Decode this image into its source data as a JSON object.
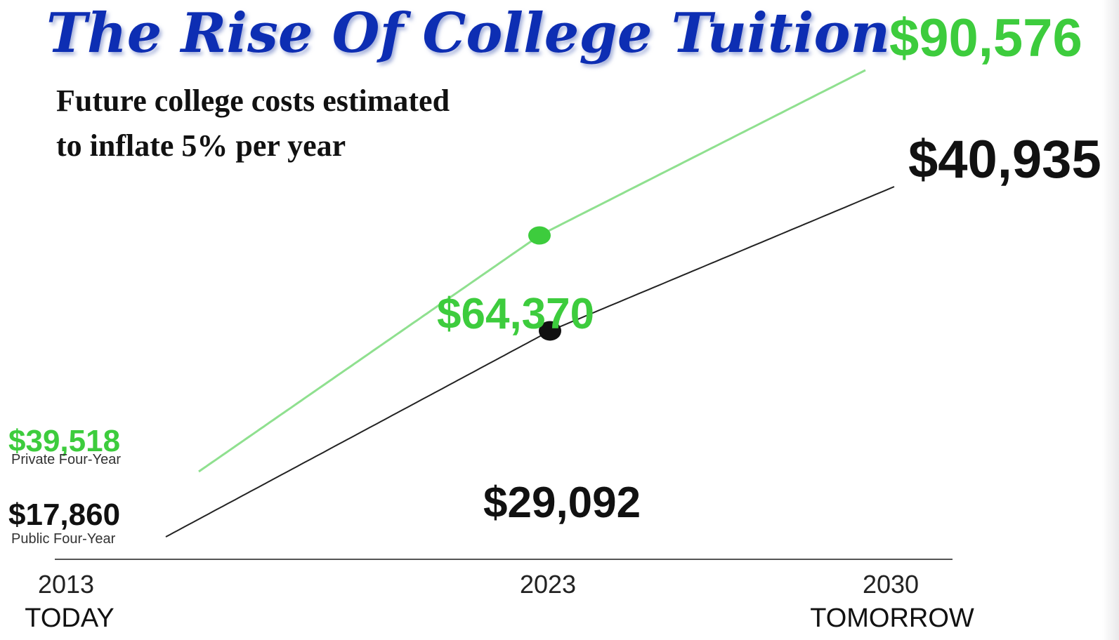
{
  "chart_data": {
    "type": "line",
    "title": "The Rise Of College Tuition",
    "subtitle_lines": [
      "Future college costs estimated",
      "to inflate 5% per year"
    ],
    "x": [
      2013,
      2023,
      2030
    ],
    "x_tick_labels": [
      {
        "year": "2013",
        "sub": "TODAY"
      },
      {
        "year": "2023",
        "sub": ""
      },
      {
        "year": "2030",
        "sub": "TOMORROW"
      }
    ],
    "series": [
      {
        "name": "Private Four-Year",
        "color": "#3dcc3d",
        "line_color": "#8fe08f",
        "values": [
          39518,
          64370,
          90576
        ],
        "value_labels": [
          "$39,518",
          "$64,370",
          "$90,576"
        ]
      },
      {
        "name": "Public Four-Year",
        "color": "#111111",
        "line_color": "#222222",
        "values": [
          17860,
          29092,
          40935
        ],
        "value_labels": [
          "$17,860",
          "$29,092",
          "$40,935"
        ]
      }
    ],
    "grid": false,
    "legend": "none"
  },
  "colors": {
    "title": "#0a2db3",
    "title_shadow": "#9aa7d6",
    "private": "#3dcc3d",
    "public": "#111111",
    "axis": "#555555"
  }
}
